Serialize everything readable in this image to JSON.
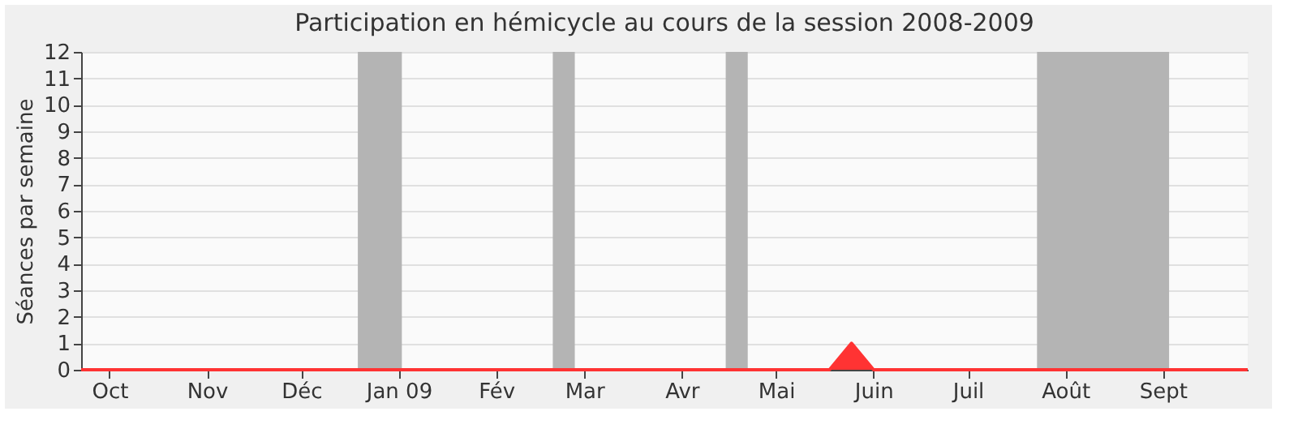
{
  "chart_data": {
    "type": "area",
    "title": "Participation en hémicycle au cours de la session 2008-2009",
    "ylabel": "Séances par semaine",
    "x": [
      "2008-09-22",
      "2008-09-29",
      "2008-10-06",
      "2008-10-13",
      "2008-10-20",
      "2008-10-27",
      "2008-11-03",
      "2008-11-10",
      "2008-11-17",
      "2008-11-24",
      "2008-12-01",
      "2008-12-08",
      "2008-12-15",
      "2008-12-22",
      "2008-12-29",
      "2009-01-05",
      "2009-01-12",
      "2009-01-19",
      "2009-01-26",
      "2009-02-02",
      "2009-02-09",
      "2009-02-16",
      "2009-02-23",
      "2009-03-02",
      "2009-03-09",
      "2009-03-16",
      "2009-03-23",
      "2009-03-30",
      "2009-04-06",
      "2009-04-13",
      "2009-04-20",
      "2009-04-27",
      "2009-05-04",
      "2009-05-11",
      "2009-05-18",
      "2009-05-25",
      "2009-06-01",
      "2009-06-08",
      "2009-06-15",
      "2009-06-22",
      "2009-06-29",
      "2009-07-06",
      "2009-07-13",
      "2009-07-20",
      "2009-07-27",
      "2009-08-03",
      "2009-08-10",
      "2009-08-17",
      "2009-08-24",
      "2009-08-31",
      "2009-09-07",
      "2009-09-14",
      "2009-09-21",
      "2009-09-28"
    ],
    "series": [
      {
        "color": "#ff3333",
        "values": [
          0,
          0,
          0,
          0,
          0,
          0,
          0,
          0,
          0,
          0,
          0,
          0,
          0,
          0,
          0,
          0,
          0,
          0,
          0,
          0,
          0,
          0,
          0,
          0,
          0,
          0,
          0,
          0,
          0,
          0,
          0,
          0,
          0,
          0,
          0,
          1,
          0,
          0,
          0,
          0,
          0,
          0,
          0,
          0,
          0,
          0,
          0,
          0,
          0,
          0,
          0,
          0,
          0,
          0
        ]
      }
    ],
    "xlim": [
      "2008-09-22",
      "2009-09-28"
    ],
    "xticks": [
      {
        "value": "2008-10-01",
        "label": "Oct"
      },
      {
        "value": "2008-11-01",
        "label": "Nov"
      },
      {
        "value": "2008-12-01",
        "label": "Déc"
      },
      {
        "value": "2009-01-01",
        "label": "Jan 09"
      },
      {
        "value": "2009-02-01",
        "label": "Fév"
      },
      {
        "value": "2009-03-01",
        "label": "Mar"
      },
      {
        "value": "2009-04-01",
        "label": "Avr"
      },
      {
        "value": "2009-05-01",
        "label": "Mai"
      },
      {
        "value": "2009-06-01",
        "label": "Juin"
      },
      {
        "value": "2009-07-01",
        "label": "Juil"
      },
      {
        "value": "2009-08-01",
        "label": "Août"
      },
      {
        "value": "2009-09-01",
        "label": "Sept"
      }
    ],
    "ylim": [
      0,
      12
    ],
    "yticks": [
      0,
      1,
      2,
      3,
      4,
      5,
      6,
      7,
      8,
      9,
      10,
      11,
      12
    ],
    "bands": [
      {
        "axis": "x",
        "from": "2008-12-19",
        "to": "2009-01-02",
        "color": "#b4b4b4"
      },
      {
        "axis": "x",
        "from": "2009-02-19",
        "to": "2009-02-26",
        "color": "#b4b4b4"
      },
      {
        "axis": "x",
        "from": "2009-04-15",
        "to": "2009-04-22",
        "color": "#b4b4b4"
      },
      {
        "axis": "x",
        "from": "2009-07-23",
        "to": "2009-09-03",
        "color": "#b4b4b4"
      }
    ],
    "grid": "y"
  }
}
